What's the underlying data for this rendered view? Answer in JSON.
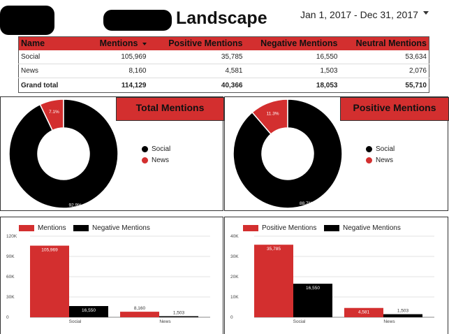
{
  "header": {
    "title": "Landscape",
    "date_range": "Jan 1, 2017 - Dec 31, 2017"
  },
  "table": {
    "columns": [
      "Name",
      "Mentions",
      "Positive Mentions",
      "Negative Mentions",
      "Neutral Mentions"
    ],
    "rows": [
      [
        "Social",
        "105,969",
        "35,785",
        "16,550",
        "53,634"
      ],
      [
        "News",
        "8,160",
        "4,581",
        "1,503",
        "2,076"
      ]
    ],
    "total": [
      "Grand total",
      "114,129",
      "40,366",
      "18,053",
      "55,710"
    ]
  },
  "colors": {
    "red": "#d32f2f",
    "black": "#000000"
  },
  "chart_data": [
    {
      "type": "pie",
      "title": "Total Mentions",
      "labels": [
        "Social",
        "News"
      ],
      "values": [
        92.9,
        7.1
      ],
      "slice_labels": [
        "92.9%",
        "7.1%"
      ],
      "legend": "right"
    },
    {
      "type": "pie",
      "title": "Positive Mentions",
      "labels": [
        "Social",
        "News"
      ],
      "values": [
        88.7,
        11.3
      ],
      "slice_labels": [
        "88.7%",
        "11.3%"
      ],
      "legend": "right"
    },
    {
      "type": "bar",
      "categories": [
        "Social",
        "News"
      ],
      "series": [
        {
          "name": "Mentions",
          "values": [
            105969,
            8160
          ],
          "labels": [
            "105,969",
            "8,160"
          ]
        },
        {
          "name": "Negative Mentions",
          "values": [
            16550,
            1503
          ],
          "labels": [
            "16,550",
            "1,503"
          ]
        }
      ],
      "ylim": [
        0,
        120000
      ],
      "yticks": [
        0,
        30000,
        60000,
        90000,
        120000
      ],
      "ytick_labels": [
        "0",
        "30K",
        "60K",
        "90K",
        "120K"
      ],
      "legend": "top-left"
    },
    {
      "type": "bar",
      "categories": [
        "Social",
        "News"
      ],
      "series": [
        {
          "name": "Positive Mentions",
          "values": [
            35785,
            4581
          ],
          "labels": [
            "35,785",
            "4,581"
          ]
        },
        {
          "name": "Negative Mentions",
          "values": [
            16550,
            1503
          ],
          "labels": [
            "16,550",
            "1,503"
          ]
        }
      ],
      "ylim": [
        0,
        40000
      ],
      "yticks": [
        0,
        10000,
        20000,
        30000,
        40000
      ],
      "ytick_labels": [
        "0",
        "10K",
        "20K",
        "30K",
        "40K"
      ],
      "legend": "top-left"
    }
  ]
}
